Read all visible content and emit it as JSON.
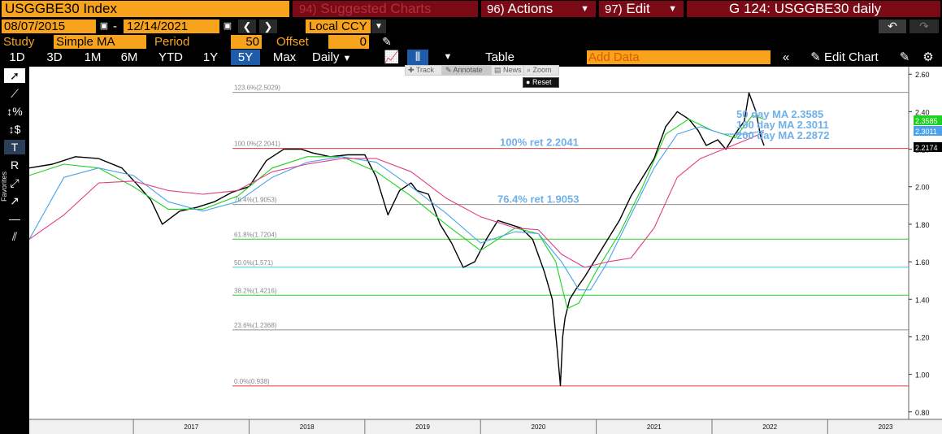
{
  "header": {
    "ticker": "USGGBE30 Index",
    "suggested_num": "94)",
    "suggested_label": "Suggested Charts",
    "actions_num": "96)",
    "actions_label": "Actions",
    "edit_num": "97)",
    "edit_label": "Edit",
    "chart_title": "G 124: USGGBE30 daily"
  },
  "range": {
    "start": "08/07/2015",
    "dash": "-",
    "end": "12/14/2021",
    "currency": "Local CCY"
  },
  "study": {
    "label": "Study",
    "type": "Simple MA",
    "period_label": "Period",
    "period": "50",
    "offset_label": "Offset",
    "offset": "0"
  },
  "periods": [
    "1D",
    "3D",
    "1M",
    "6M",
    "YTD",
    "1Y",
    "5Y",
    "Max"
  ],
  "selected_period": "5Y",
  "frequency": "Daily",
  "table_label": "Table",
  "add_data_placeholder": "Add Data",
  "edit_chart_label": "Edit Chart",
  "float_toolbar": {
    "track": "Track",
    "annotate": "Annotate",
    "news": "News",
    "zoom": "Zoom",
    "reset": "Reset"
  },
  "left_toolbar": {
    "favorites_label": "Favorites"
  },
  "colors": {
    "orange": "#f7a31c",
    "maroon": "#7a0a16",
    "price": "#000000",
    "ma50": "#1fd11f",
    "ma100": "#4aa3ea",
    "ma200": "#e23c86",
    "annotation": "#6fb0e8"
  },
  "chart_data": {
    "type": "line",
    "x_ticks": [
      "2017",
      "2018",
      "2019",
      "2020",
      "2021",
      "2022",
      "2023"
    ],
    "y_ticks": [
      "2.60",
      "2.40",
      "2.20",
      "2.00",
      "1.80",
      "1.60",
      "1.40",
      "1.20",
      "1.00",
      "0.80"
    ],
    "ylim": [
      0.76,
      2.64
    ],
    "series": [
      {
        "name": "USGGBE30",
        "color": "#000000",
        "x": [
          2015.6,
          2015.8,
          2016.0,
          2016.2,
          2016.4,
          2016.55,
          2016.65,
          2016.75,
          2016.9,
          2017.05,
          2017.2,
          2017.35,
          2017.5,
          2017.65,
          2017.8,
          2017.95,
          2018.05,
          2018.2,
          2018.35,
          2018.5,
          2018.6,
          2018.7,
          2018.8,
          2018.9,
          2018.95,
          2019.05,
          2019.15,
          2019.25,
          2019.35,
          2019.45,
          2019.55,
          2019.65,
          2019.75,
          2019.85,
          2019.95,
          2020.05,
          2020.12,
          2020.16,
          2020.19,
          2020.21,
          2020.23,
          2020.27,
          2020.32,
          2020.4,
          2020.5,
          2020.6,
          2020.7,
          2020.8,
          2020.9,
          2021.0,
          2021.1,
          2021.2,
          2021.3,
          2021.38,
          2021.45,
          2021.55,
          2021.62,
          2021.7,
          2021.78,
          2021.82,
          2021.88,
          2021.92,
          2021.95
        ],
        "y": [
          2.1,
          2.12,
          2.16,
          2.15,
          2.1,
          2.0,
          1.93,
          1.8,
          1.87,
          1.89,
          1.92,
          1.97,
          2.0,
          2.14,
          2.2,
          2.2,
          2.18,
          2.16,
          2.17,
          2.17,
          2.05,
          1.85,
          1.98,
          2.02,
          1.98,
          1.96,
          1.8,
          1.7,
          1.57,
          1.6,
          1.72,
          1.82,
          1.8,
          1.78,
          1.72,
          1.55,
          1.4,
          1.15,
          0.94,
          1.2,
          1.3,
          1.4,
          1.45,
          1.52,
          1.62,
          1.72,
          1.82,
          1.95,
          2.05,
          2.15,
          2.32,
          2.4,
          2.36,
          2.3,
          2.22,
          2.25,
          2.2,
          2.28,
          2.35,
          2.5,
          2.4,
          2.27,
          2.22
        ]
      },
      {
        "name": "50 day MA",
        "color": "#1fd11f",
        "x": [
          2015.6,
          2015.9,
          2016.2,
          2016.5,
          2016.8,
          2017.1,
          2017.4,
          2017.7,
          2018.0,
          2018.3,
          2018.6,
          2018.9,
          2019.2,
          2019.5,
          2019.8,
          2020.0,
          2020.15,
          2020.25,
          2020.35,
          2020.5,
          2020.7,
          2020.9,
          2021.1,
          2021.3,
          2021.5,
          2021.7,
          2021.85,
          2021.95
        ],
        "y": [
          2.06,
          2.12,
          2.1,
          2.0,
          1.88,
          1.88,
          1.95,
          2.1,
          2.16,
          2.16,
          2.08,
          1.95,
          1.8,
          1.66,
          1.78,
          1.75,
          1.6,
          1.35,
          1.38,
          1.55,
          1.75,
          2.0,
          2.28,
          2.36,
          2.3,
          2.26,
          2.38,
          2.36
        ]
      },
      {
        "name": "100 day MA",
        "color": "#4aa3ea",
        "x": [
          2015.6,
          2015.9,
          2016.2,
          2016.5,
          2016.8,
          2017.1,
          2017.4,
          2017.7,
          2018.0,
          2018.3,
          2018.6,
          2018.9,
          2019.2,
          2019.5,
          2019.8,
          2020.0,
          2020.2,
          2020.35,
          2020.45,
          2020.6,
          2020.8,
          2021.0,
          2021.2,
          2021.4,
          2021.6,
          2021.8,
          2021.95
        ],
        "y": [
          1.72,
          2.05,
          2.1,
          2.06,
          1.92,
          1.87,
          1.92,
          2.05,
          2.13,
          2.16,
          2.13,
          2.0,
          1.86,
          1.7,
          1.76,
          1.75,
          1.6,
          1.45,
          1.45,
          1.6,
          1.85,
          2.1,
          2.28,
          2.32,
          2.28,
          2.28,
          2.3
        ]
      },
      {
        "name": "200 day MA",
        "color": "#e23c86",
        "x": [
          2015.6,
          2015.9,
          2016.2,
          2016.5,
          2016.8,
          2017.1,
          2017.4,
          2017.7,
          2018.0,
          2018.3,
          2018.6,
          2018.9,
          2019.2,
          2019.5,
          2019.8,
          2020.0,
          2020.2,
          2020.4,
          2020.6,
          2020.8,
          2021.0,
          2021.2,
          2021.4,
          2021.6,
          2021.8,
          2021.95
        ],
        "y": [
          1.72,
          1.85,
          2.02,
          2.03,
          1.98,
          1.96,
          1.98,
          2.08,
          2.12,
          2.15,
          2.15,
          2.08,
          1.94,
          1.84,
          1.78,
          1.77,
          1.64,
          1.57,
          1.6,
          1.62,
          1.78,
          2.05,
          2.15,
          2.2,
          2.25,
          2.29
        ]
      }
    ],
    "fib_levels": [
      {
        "label": "123.6%(2.5029)",
        "value": 2.5029,
        "color": "#909090"
      },
      {
        "label": "100.0%(2.2041)",
        "value": 2.2041,
        "color": "#e03c3c"
      },
      {
        "label": "76.4%(1.9053)",
        "value": 1.9053,
        "color": "#909090"
      },
      {
        "label": "61.8%(1.7204)",
        "value": 1.7204,
        "color": "#2bd02b"
      },
      {
        "label": "50.0%(1.571)",
        "value": 1.571,
        "color": "#3ccbd9"
      },
      {
        "label": "38.2%(1.4216)",
        "value": 1.4216,
        "color": "#2bd02b"
      },
      {
        "label": "23.6%(1.2368)",
        "value": 1.2368,
        "color": "#909090"
      },
      {
        "label": "0.0%(0.938)",
        "value": 0.938,
        "color": "#e03c3c"
      }
    ],
    "annotations": [
      {
        "text": "100% ret 2.2041",
        "value": 2.2041
      },
      {
        "text": "76.4% ret 1.9053",
        "value": 1.9053
      }
    ],
    "ma_labels": [
      {
        "text": "50 day MA 2.3585"
      },
      {
        "text": "100 day MA 2.3011"
      },
      {
        "text": "200 day MA 2.2872"
      }
    ],
    "last_value_tags": [
      {
        "value": 2.3585,
        "label": "2.3585",
        "color": "#1fd11f"
      },
      {
        "value": 2.3011,
        "label": "2.3011",
        "color": "#4aa3ea"
      },
      {
        "value": 2.2174,
        "label": "2.2174",
        "color": "#000000"
      }
    ]
  }
}
